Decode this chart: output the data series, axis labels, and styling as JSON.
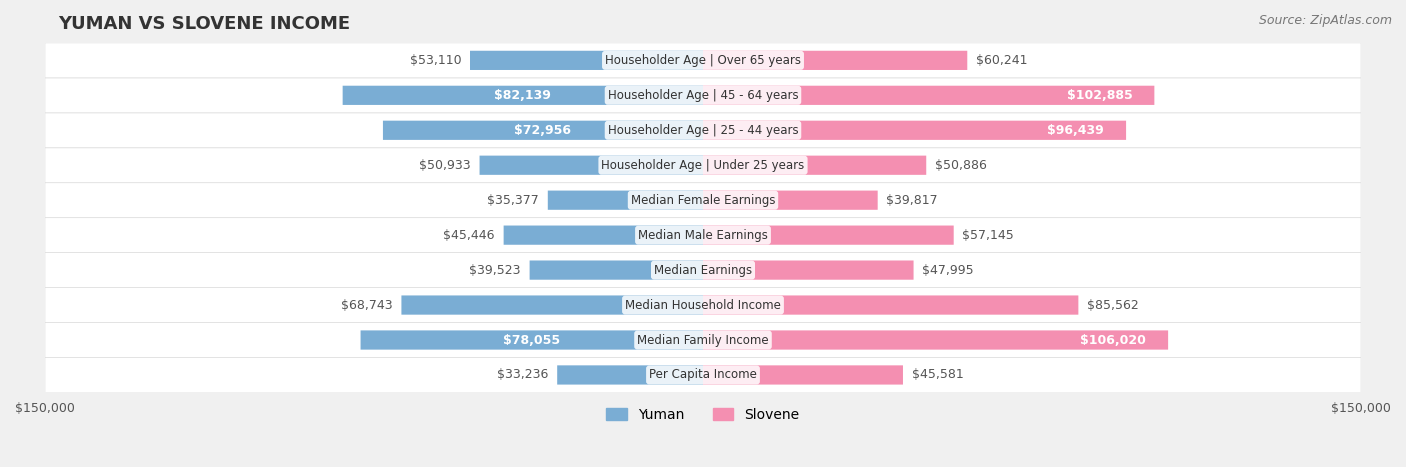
{
  "title": "YUMAN VS SLOVENE INCOME",
  "source": "Source: ZipAtlas.com",
  "categories": [
    "Per Capita Income",
    "Median Family Income",
    "Median Household Income",
    "Median Earnings",
    "Median Male Earnings",
    "Median Female Earnings",
    "Householder Age | Under 25 years",
    "Householder Age | 25 - 44 years",
    "Householder Age | 45 - 64 years",
    "Householder Age | Over 65 years"
  ],
  "yuman_values": [
    33236,
    78055,
    68743,
    39523,
    45446,
    35377,
    50933,
    72956,
    82139,
    53110
  ],
  "slovene_values": [
    45581,
    106020,
    85562,
    47995,
    57145,
    39817,
    50886,
    96439,
    102885,
    60241
  ],
  "yuman_color": "#7aadd4",
  "slovene_color": "#f48fb1",
  "yuman_label_color_normal": "#555555",
  "slovene_label_color_normal": "#555555",
  "yuman_label_color_inside": "#ffffff",
  "slovene_label_color_inside": "#ffffff",
  "max_value": 150000,
  "bar_height": 0.55,
  "background_color": "#f0f0f0",
  "row_background": "#f9f9f9",
  "row_border": "#dddddd",
  "title_fontsize": 13,
  "source_fontsize": 9,
  "bar_label_fontsize": 9,
  "category_fontsize": 8.5,
  "axis_label_fontsize": 9,
  "legend_fontsize": 10,
  "yuman_large_threshold": 70000,
  "slovene_large_threshold": 90000
}
